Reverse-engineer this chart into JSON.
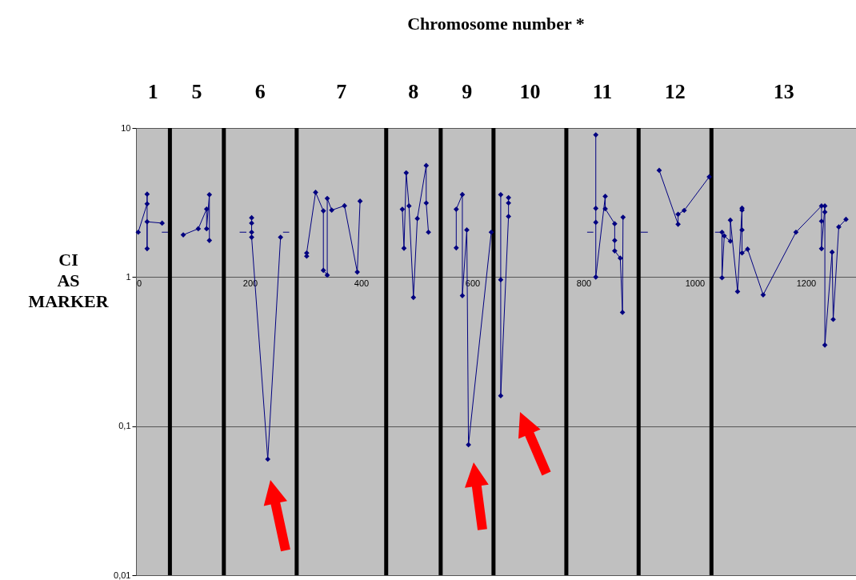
{
  "chart_data": {
    "type": "line",
    "title": "Chromosome number *",
    "ylabel": "CI AS MARKER",
    "log": "y",
    "grid": "y",
    "marker": "diamond",
    "line_style": "solid",
    "xlim": [
      -5,
      1290
    ],
    "xticks": [
      0,
      200,
      400,
      600,
      800,
      1000,
      1200
    ],
    "ylim": [
      0.01,
      10
    ],
    "yticks": [
      {
        "value": 0.01,
        "label": "0,01"
      },
      {
        "value": 0.1,
        "label": "0,1"
      },
      1,
      10
    ],
    "annotations": [
      "1",
      "5",
      "6",
      "7",
      "8",
      "9",
      "10",
      "11",
      "12",
      "13"
    ],
    "series": [
      {
        "color": "#000080",
        "x": [
          -1,
          15,
          15,
          15,
          15,
          42
        ],
        "values": [
          2.0,
          3.1,
          3.6,
          1.55,
          2.35,
          2.3
        ]
      },
      {
        "color": "#000080",
        "x": [
          80,
          107,
          122,
          122,
          127,
          127
        ],
        "values": [
          1.92,
          2.11,
          2.86,
          2.11,
          3.57,
          1.76
        ]
      },
      {
        "color": "#000080",
        "x": [
          203,
          203,
          203,
          203,
          232,
          255
        ],
        "values": [
          2.5,
          2.3,
          2.0,
          1.85,
          0.06,
          1.85
        ]
      },
      {
        "color": "#000080",
        "x": [
          302,
          302,
          318,
          332,
          332,
          339,
          339,
          347,
          370,
          393,
          398
        ],
        "values": [
          1.38,
          1.45,
          3.7,
          2.78,
          1.11,
          1.03,
          3.37,
          2.81,
          3.01,
          1.08,
          3.23
        ]
      },
      {
        "color": "#000080",
        "x": [
          474,
          477,
          481,
          486,
          494,
          501,
          517,
          517,
          521
        ],
        "values": [
          2.85,
          1.56,
          5.0,
          3.0,
          0.73,
          2.47,
          5.6,
          3.14,
          2.0
        ]
      },
      {
        "color": "#000080",
        "x": [
          571,
          571,
          582,
          582,
          590,
          593,
          634
        ],
        "values": [
          1.57,
          2.85,
          3.58,
          0.75,
          2.07,
          0.075,
          2.0
        ]
      },
      {
        "color": "#000080",
        "x": [
          651,
          651,
          651,
          665,
          665,
          665
        ],
        "values": [
          3.57,
          0.96,
          0.16,
          2.55,
          3.14,
          3.41
        ]
      },
      {
        "color": "#000080",
        "x": [
          822,
          822,
          822,
          822,
          839,
          839,
          856,
          856,
          856,
          866,
          870,
          871
        ],
        "values": [
          9.0,
          2.89,
          2.33,
          1.0,
          3.48,
          2.87,
          2.28,
          1.76,
          1.5,
          1.34,
          0.58,
          2.52
        ]
      },
      {
        "color": "#000080",
        "x": [
          936,
          970,
          970,
          981,
          1026
        ],
        "values": [
          5.2,
          2.26,
          2.64,
          2.8,
          4.7
        ]
      },
      {
        "color": "#000080",
        "x": [
          1049,
          1049,
          1053,
          1064,
          1064,
          1077,
          1085,
          1085,
          1085,
          1085,
          1095,
          1123,
          1182,
          1228,
          1228,
          1228,
          1234,
          1234,
          1234,
          1247,
          1249,
          1259,
          1272
        ],
        "values": [
          2.0,
          0.99,
          1.89,
          1.74,
          2.41,
          0.8,
          2.9,
          2.81,
          2.07,
          1.45,
          1.54,
          0.76,
          2.0,
          3.0,
          2.37,
          1.55,
          3.0,
          2.73,
          0.35,
          1.47,
          0.52,
          2.17,
          2.44
        ]
      },
      {
        "color": "#000080",
        "marker": "none",
        "x": [
          42,
          52
        ],
        "values": [
          2,
          2
        ]
      },
      {
        "color": "#000080",
        "marker": "none",
        "x": [
          182,
          193
        ],
        "values": [
          2,
          2
        ]
      },
      {
        "color": "#000080",
        "marker": "none",
        "x": [
          260,
          270
        ],
        "values": [
          2,
          2
        ]
      },
      {
        "color": "#000080",
        "marker": "none",
        "x": [
          807,
          817
        ],
        "values": [
          2,
          2
        ]
      },
      {
        "color": "#000080",
        "marker": "none",
        "x": [
          903,
          915
        ],
        "values": [
          2,
          2
        ]
      },
      {
        "color": "#000080",
        "marker": "none",
        "x": [
          1037,
          1047
        ],
        "values": [
          2,
          2
        ]
      }
    ],
    "ref_lines": [
      {
        "axis": "x",
        "value": 56,
        "color": "#000000"
      },
      {
        "axis": "x",
        "value": 153,
        "color": "#000000"
      },
      {
        "axis": "x",
        "value": 284,
        "color": "#000000"
      },
      {
        "axis": "x",
        "value": 445,
        "color": "#000000"
      },
      {
        "axis": "x",
        "value": 543,
        "color": "#000000"
      },
      {
        "axis": "x",
        "value": 638,
        "color": "#000000"
      },
      {
        "axis": "x",
        "value": 769,
        "color": "#000000"
      },
      {
        "axis": "x",
        "value": 899,
        "color": "#000000"
      },
      {
        "axis": "x",
        "value": 1030,
        "color": "#000000"
      }
    ]
  }
}
